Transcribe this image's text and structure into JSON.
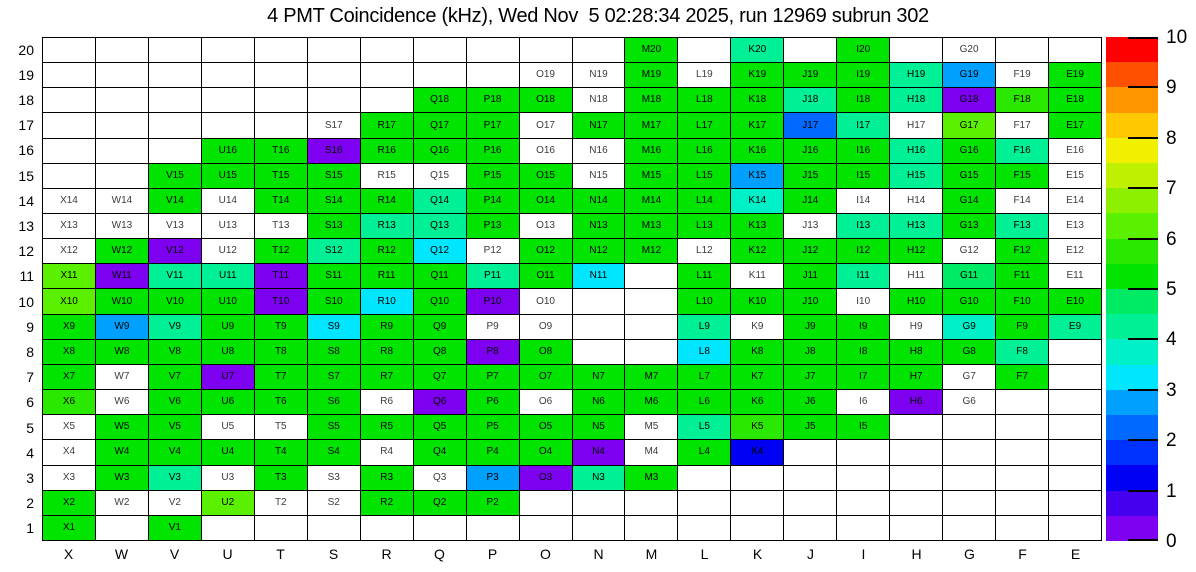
{
  "title": "4 PMT Coincidence (kHz), Wed Nov  5 02:28:34 2025, run 12969 subrun 302",
  "chart_data": {
    "type": "heatmap",
    "title": "4 PMT Coincidence (kHz), Wed Nov  5 02:28:34 2025, run 12969 subrun 302",
    "xlabel": "",
    "ylabel": "",
    "columns": [
      "X",
      "W",
      "V",
      "U",
      "T",
      "S",
      "R",
      "Q",
      "P",
      "O",
      "N",
      "M",
      "L",
      "K",
      "J",
      "I",
      "H",
      "G",
      "F",
      "E"
    ],
    "rows": [
      20,
      19,
      18,
      17,
      16,
      15,
      14,
      13,
      12,
      11,
      10,
      9,
      8,
      7,
      6,
      5,
      4,
      3,
      2,
      1
    ],
    "grid_on": true,
    "colorbar": {
      "min": 0,
      "max": 10,
      "ticks": [
        0,
        1,
        2,
        3,
        4,
        5,
        6,
        7,
        8,
        9,
        10
      ],
      "position": "right",
      "palette": [
        "#7d00f0",
        "#4600f0",
        "#0000f5",
        "#0032ff",
        "#0069ff",
        "#00a0ff",
        "#00e6ff",
        "#00f0c8",
        "#00f096",
        "#00eb64",
        "#00e400",
        "#2ae800",
        "#5af000",
        "#8cf000",
        "#bef000",
        "#f0f000",
        "#ffc800",
        "#ff9600",
        "#ff5000",
        "#ff0000"
      ]
    },
    "cells": {
      "M20": 5.25,
      "K20": 4.25,
      "I20": 5.25,
      "G20": null,
      "O19": null,
      "N19": null,
      "M19": 5.25,
      "L19": null,
      "K19": 5.25,
      "J19": 5.25,
      "I19": 5.25,
      "H19": 4.25,
      "G19": 2.75,
      "F19": null,
      "E19": 5.25,
      "Q18": 5.25,
      "P18": 5.25,
      "O18": 5.25,
      "N18": null,
      "M18": 5.25,
      "L18": 5.25,
      "K18": 5.25,
      "J18": 4.25,
      "I18": 5.25,
      "H18": 4.25,
      "G18": 0.25,
      "F18": 5.75,
      "E18": 5.25,
      "S17": null,
      "R17": 5.25,
      "Q17": 5.25,
      "P17": 5.25,
      "O17": null,
      "N17": 5.25,
      "M17": 5.25,
      "L17": 5.25,
      "K17": 5.25,
      "J17": 2.25,
      "I17": 4.25,
      "H17": null,
      "G17": 6.25,
      "F17": null,
      "E17": 5.25,
      "U16": 5.25,
      "T16": 5.25,
      "S16": 0.25,
      "R16": 5.25,
      "Q16": 5.25,
      "P16": 5.25,
      "O16": null,
      "N16": null,
      "M16": 5.25,
      "L16": 5.25,
      "K16": 5.25,
      "J16": 5.25,
      "I16": 5.25,
      "H16": 4.25,
      "G16": 5.25,
      "F16": 4.25,
      "E16": null,
      "V15": 5.25,
      "U15": 5.25,
      "T15": 5.25,
      "S15": 5.25,
      "R15": null,
      "Q15": null,
      "P15": 5.25,
      "O15": 5.25,
      "N15": null,
      "M15": 5.25,
      "L15": 5.25,
      "K15": 2.75,
      "J15": 5.25,
      "I15": 5.25,
      "H15": 4.25,
      "G15": 5.25,
      "F15": 5.25,
      "E15": null,
      "X14": null,
      "W14": null,
      "V14": 5.25,
      "U14": null,
      "T14": 5.25,
      "S14": 5.25,
      "R14": 5.25,
      "Q14": 4.25,
      "P14": 5.25,
      "O14": 5.25,
      "N14": 5.25,
      "M14": 5.25,
      "L14": 5.25,
      "K14": 3.75,
      "J14": 5.25,
      "I14": null,
      "H14": null,
      "G14": 5.25,
      "F14": null,
      "E14": null,
      "X13": null,
      "W13": null,
      "V13": null,
      "U13": null,
      "T13": null,
      "S13": 5.25,
      "R13": 4.25,
      "Q13": 4.25,
      "P13": 5.25,
      "O13": null,
      "N13": 5.25,
      "M13": 5.25,
      "L13": 5.25,
      "K13": 5.25,
      "J13": null,
      "I13": 4.25,
      "H13": 4.25,
      "G13": 5.25,
      "F13": 4.25,
      "E13": null,
      "X12": null,
      "W12": 5.25,
      "V12": 0.25,
      "U12": null,
      "T12": 5.25,
      "S12": 4.25,
      "R12": 5.25,
      "Q12": 3.25,
      "P12": null,
      "O12": 5.25,
      "N12": 5.25,
      "M12": 5.25,
      "L12": null,
      "K12": 5.25,
      "J12": 5.25,
      "I12": 5.25,
      "H12": 5.25,
      "G12": null,
      "F12": 5.25,
      "E12": null,
      "X11": 6.25,
      "W11": 0.25,
      "V11": 4.25,
      "U11": 4.25,
      "T11": 0.25,
      "S11": 5.25,
      "R11": 5.25,
      "Q11": 5.25,
      "P11": 4.25,
      "O11": 5.25,
      "N11": 3.25,
      "L11": 5.25,
      "K11": null,
      "J11": 5.25,
      "I11": 4.25,
      "H11": null,
      "G11": 4.75,
      "F11": 5.25,
      "E11": null,
      "X10": 6.25,
      "W10": 5.25,
      "V10": 5.25,
      "U10": 5.25,
      "T10": 0.25,
      "S10": 5.25,
      "R10": 3.25,
      "Q10": 5.25,
      "P10": 0.25,
      "O10": null,
      "L10": 5.25,
      "K10": 5.25,
      "J10": 5.25,
      "I10": null,
      "H10": 5.25,
      "G10": 5.25,
      "F10": 5.25,
      "E10": 5.25,
      "X9": 5.25,
      "W9": 2.75,
      "V9": 4.25,
      "U9": 5.25,
      "T9": 5.25,
      "S9": 3.25,
      "R9": 5.25,
      "Q9": 5.25,
      "P9": null,
      "O9": null,
      "L9": 4.25,
      "K9": null,
      "J9": 5.25,
      "I9": 5.25,
      "H9": null,
      "G9": 3.75,
      "F9": 5.25,
      "E9": 4.25,
      "X8": 5.25,
      "W8": 5.25,
      "V8": 5.25,
      "U8": 5.25,
      "T8": 5.25,
      "S8": 5.25,
      "R8": 5.25,
      "Q8": 5.25,
      "P8": 0.25,
      "O8": 5.25,
      "L8": 3.25,
      "K8": 5.25,
      "J8": 5.25,
      "I8": 5.25,
      "H8": 5.25,
      "G8": 5.25,
      "F8": 4.25,
      "X7": 5.25,
      "W7": null,
      "V7": 5.25,
      "U7": 0.25,
      "T7": 5.25,
      "S7": 5.25,
      "R7": 5.25,
      "Q7": 5.25,
      "P7": 5.25,
      "O7": 5.25,
      "N7": 5.25,
      "M7": 5.25,
      "L7": 5.25,
      "K7": 5.25,
      "J7": 5.25,
      "I7": 5.25,
      "H7": 5.25,
      "G7": null,
      "F7": 5.25,
      "X6": 5.75,
      "W6": null,
      "V6": 5.25,
      "U6": 5.25,
      "T6": 5.25,
      "S6": 5.25,
      "R6": null,
      "Q6": 0.25,
      "P6": 5.25,
      "O6": null,
      "N6": 5.25,
      "M6": 5.25,
      "L6": 5.25,
      "K6": 5.25,
      "J6": 5.25,
      "I6": null,
      "H6": 0.25,
      "G6": null,
      "X5": null,
      "W5": 5.25,
      "V5": 5.25,
      "U5": null,
      "T5": null,
      "S5": 5.25,
      "R5": 5.25,
      "Q5": 5.25,
      "P5": 5.25,
      "O5": 5.25,
      "N5": 5.25,
      "M5": null,
      "L5": 4.25,
      "K5": 5.75,
      "J5": 5.25,
      "I5": 5.25,
      "X4": null,
      "W4": 5.25,
      "V4": 5.25,
      "U4": 5.25,
      "T4": 5.25,
      "S4": 5.25,
      "R4": null,
      "Q4": 5.25,
      "P4": 5.25,
      "O4": 5.25,
      "N4": 0.25,
      "M4": null,
      "L4": 5.25,
      "K4": 1.25,
      "X3": null,
      "W3": 5.25,
      "V3": 4.25,
      "U3": null,
      "T3": 5.25,
      "S3": null,
      "R3": 5.25,
      "Q3": null,
      "P3": 2.75,
      "O3": 0.25,
      "N3": 4.25,
      "M3": 5.25,
      "X2": 5.25,
      "W2": null,
      "V2": null,
      "U2": 6.25,
      "T2": null,
      "S2": null,
      "R2": 5.25,
      "Q2": 5.25,
      "P2": 5.25,
      "X1": 5.25,
      "V1": 5.25
    }
  }
}
